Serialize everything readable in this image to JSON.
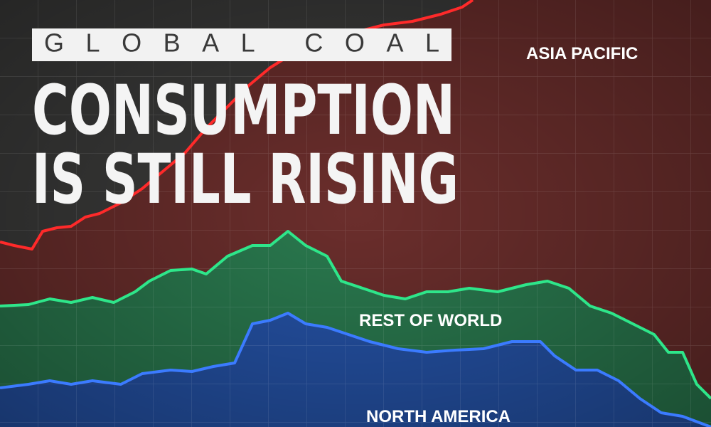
{
  "header": {
    "kicker": "GLOBAL COAL",
    "title_lines": [
      "CONSUMPTION",
      "IS STILL RISING"
    ]
  },
  "labels": [
    "ASIA PACIFIC",
    "REST OF WORLD",
    "NORTH AMERICA"
  ]
}
